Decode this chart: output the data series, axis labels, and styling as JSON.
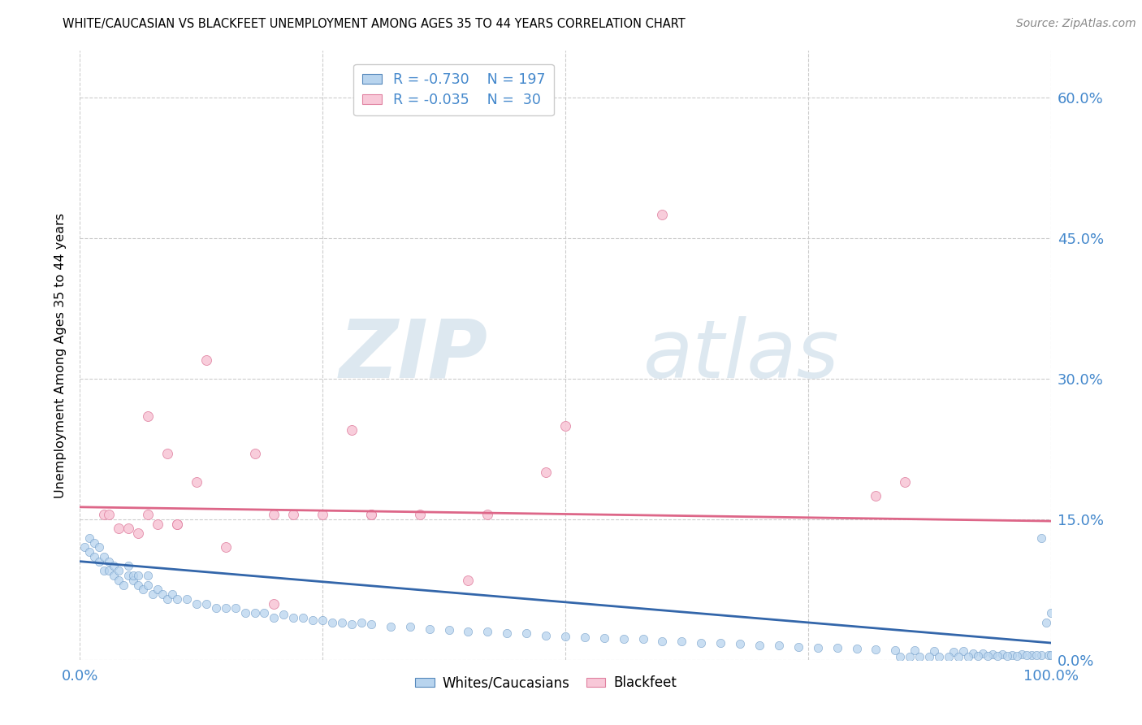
{
  "title": "WHITE/CAUCASIAN VS BLACKFEET UNEMPLOYMENT AMONG AGES 35 TO 44 YEARS CORRELATION CHART",
  "source": "Source: ZipAtlas.com",
  "ylabel": "Unemployment Among Ages 35 to 44 years",
  "watermark_zip": "ZIP",
  "watermark_atlas": "atlas",
  "blue_R": -0.73,
  "blue_N": 197,
  "pink_R": -0.035,
  "pink_N": 30,
  "xlim": [
    0.0,
    1.0
  ],
  "ylim": [
    0.0,
    0.65
  ],
  "yticks": [
    0.0,
    0.15,
    0.3,
    0.45,
    0.6
  ],
  "ytick_labels": [
    "0.0%",
    "15.0%",
    "30.0%",
    "45.0%",
    "60.0%"
  ],
  "xticks": [
    0.0,
    0.25,
    0.5,
    0.75,
    1.0
  ],
  "xtick_labels": [
    "0.0%",
    "",
    "",
    "",
    "100.0%"
  ],
  "grid_color": "#cccccc",
  "blue_scatter_face": "#b8d4ee",
  "blue_scatter_edge": "#5588bb",
  "pink_scatter_face": "#f8c8d8",
  "pink_scatter_edge": "#e080a0",
  "blue_line_color": "#3366aa",
  "pink_line_color": "#dd6688",
  "axis_tick_color": "#4488cc",
  "legend_label_blue": "Whites/Caucasians",
  "legend_label_pink": "Blackfeet",
  "blue_trend_x0": 0.0,
  "blue_trend_y0": 0.105,
  "blue_trend_x1": 1.0,
  "blue_trend_y1": 0.018,
  "pink_trend_x0": 0.0,
  "pink_trend_y0": 0.163,
  "pink_trend_x1": 1.0,
  "pink_trend_y1": 0.148,
  "pink_points_x": [
    0.025,
    0.03,
    0.04,
    0.05,
    0.06,
    0.07,
    0.09,
    0.1,
    0.12,
    0.13,
    0.15,
    0.18,
    0.2,
    0.22,
    0.25,
    0.28,
    0.3,
    0.35,
    0.4,
    0.42,
    0.48,
    0.5,
    0.6,
    0.82,
    0.85,
    0.07,
    0.08,
    0.1,
    0.2,
    0.3
  ],
  "pink_points_y": [
    0.155,
    0.155,
    0.14,
    0.14,
    0.135,
    0.26,
    0.22,
    0.145,
    0.19,
    0.32,
    0.12,
    0.22,
    0.06,
    0.155,
    0.155,
    0.245,
    0.155,
    0.155,
    0.085,
    0.155,
    0.2,
    0.25,
    0.475,
    0.175,
    0.19,
    0.155,
    0.145,
    0.145,
    0.155,
    0.155
  ],
  "blue_cluster_x_low": [
    0.005,
    0.01,
    0.01,
    0.015,
    0.015,
    0.02,
    0.02,
    0.025,
    0.025,
    0.03,
    0.03,
    0.035,
    0.035,
    0.04,
    0.04,
    0.045,
    0.05,
    0.05,
    0.055,
    0.055,
    0.06,
    0.06,
    0.065,
    0.07,
    0.07,
    0.075,
    0.08,
    0.085,
    0.09,
    0.095
  ],
  "blue_cluster_y_low": [
    0.12,
    0.115,
    0.13,
    0.11,
    0.125,
    0.105,
    0.12,
    0.095,
    0.11,
    0.095,
    0.105,
    0.09,
    0.1,
    0.085,
    0.095,
    0.08,
    0.09,
    0.1,
    0.085,
    0.09,
    0.08,
    0.09,
    0.075,
    0.08,
    0.09,
    0.07,
    0.075,
    0.07,
    0.065,
    0.07
  ],
  "blue_mid_x": [
    0.1,
    0.11,
    0.12,
    0.13,
    0.14,
    0.15,
    0.16,
    0.17,
    0.18,
    0.19,
    0.2,
    0.21,
    0.22,
    0.23,
    0.24,
    0.25,
    0.26,
    0.27,
    0.28,
    0.29,
    0.3,
    0.32,
    0.34,
    0.36,
    0.38,
    0.4,
    0.42,
    0.44,
    0.46,
    0.48,
    0.5,
    0.52,
    0.54,
    0.56,
    0.58,
    0.6,
    0.62,
    0.64,
    0.66,
    0.68,
    0.7,
    0.72,
    0.74,
    0.76,
    0.78,
    0.8,
    0.82,
    0.84,
    0.86,
    0.88
  ],
  "blue_mid_y": [
    0.065,
    0.065,
    0.06,
    0.06,
    0.055,
    0.055,
    0.055,
    0.05,
    0.05,
    0.05,
    0.045,
    0.048,
    0.045,
    0.045,
    0.042,
    0.042,
    0.04,
    0.04,
    0.038,
    0.04,
    0.038,
    0.035,
    0.035,
    0.033,
    0.032,
    0.03,
    0.03,
    0.028,
    0.028,
    0.026,
    0.025,
    0.024,
    0.023,
    0.022,
    0.022,
    0.02,
    0.02,
    0.018,
    0.018,
    0.017,
    0.015,
    0.015,
    0.014,
    0.013,
    0.013,
    0.012,
    0.011,
    0.01,
    0.01,
    0.009
  ],
  "blue_high_x": [
    0.9,
    0.91,
    0.92,
    0.93,
    0.94,
    0.95,
    0.96,
    0.97,
    0.98,
    0.99,
    0.99,
    0.995,
    0.998,
    1.0,
    1.0,
    0.985,
    0.975,
    0.965,
    0.955,
    0.945,
    0.935,
    0.925,
    0.915,
    0.905,
    0.895,
    0.885,
    0.875,
    0.865,
    0.855,
    0.845
  ],
  "blue_high_y": [
    0.008,
    0.009,
    0.007,
    0.007,
    0.006,
    0.006,
    0.005,
    0.006,
    0.005,
    0.005,
    0.13,
    0.04,
    0.005,
    0.005,
    0.05,
    0.005,
    0.005,
    0.004,
    0.004,
    0.004,
    0.004,
    0.004,
    0.003,
    0.003,
    0.003,
    0.003,
    0.003,
    0.003,
    0.003,
    0.003
  ]
}
